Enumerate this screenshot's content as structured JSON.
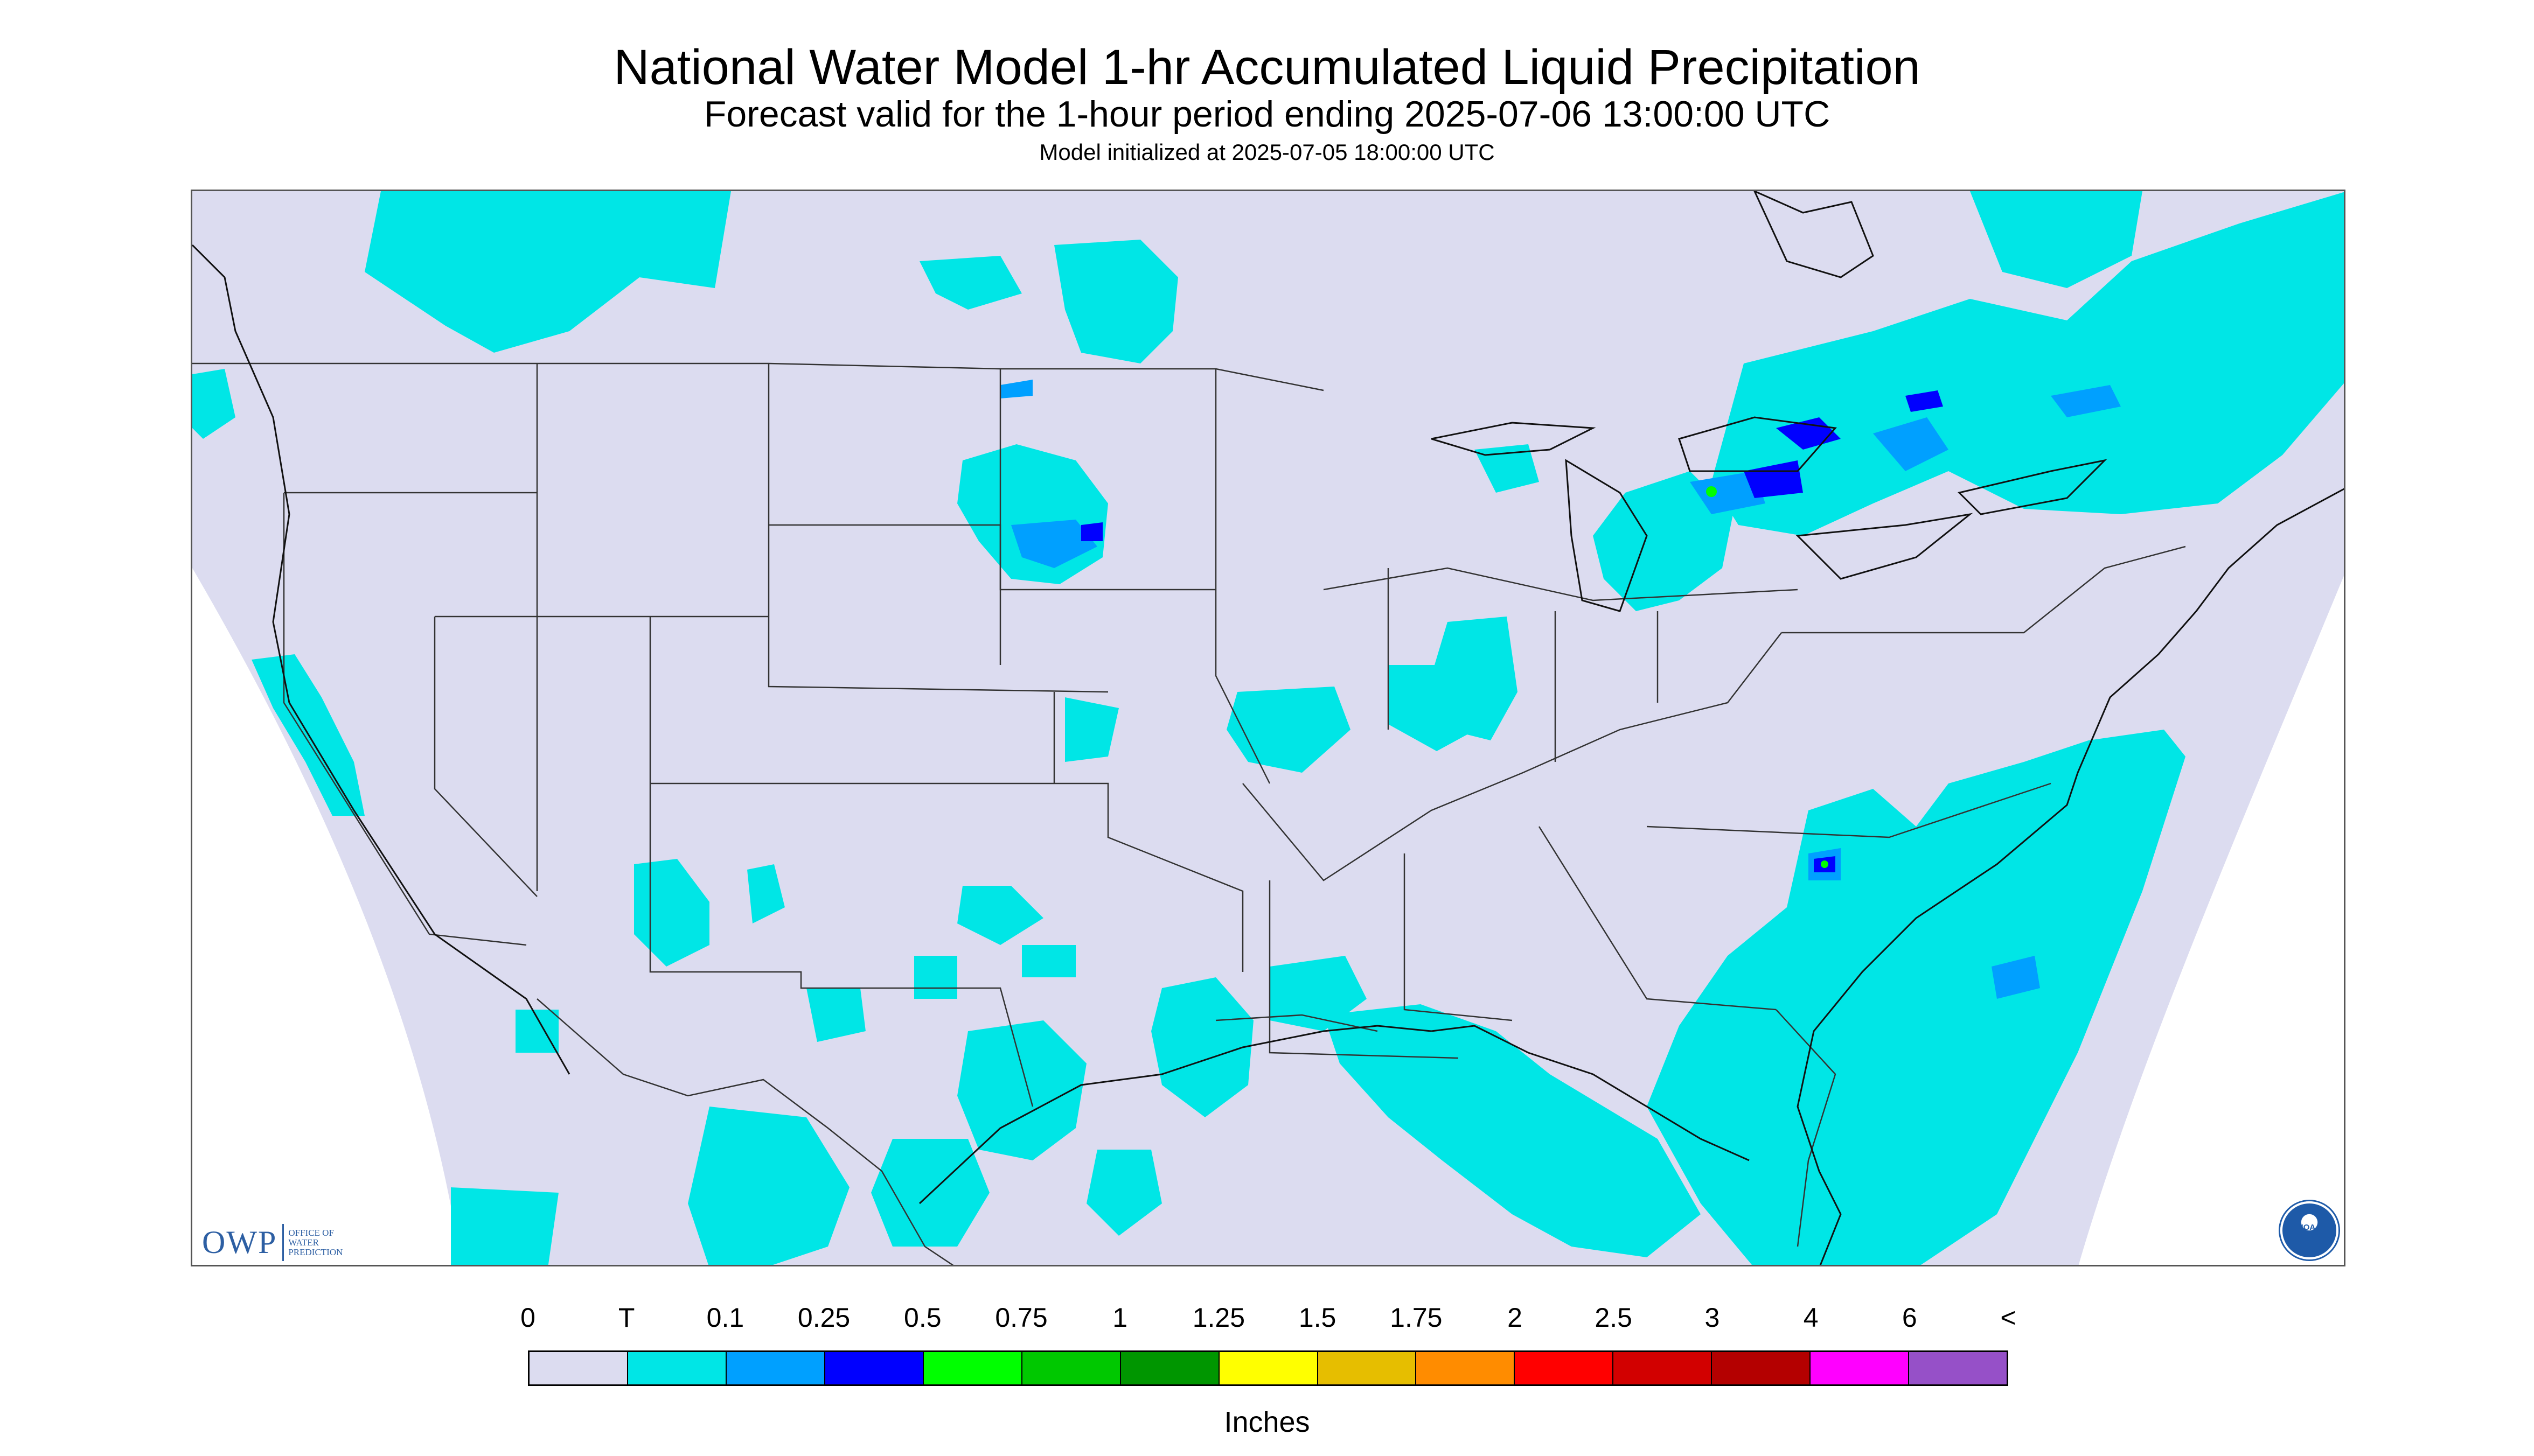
{
  "header": {
    "title": "National Water Model 1-hr Accumulated Liquid Precipitation",
    "subtitle": "Forecast valid for the 1-hour period ending 2025-07-06 13:00:00 UTC",
    "init": "Model initialized at 2025-07-05 18:00:00 UTC"
  },
  "logos": {
    "owp_mark": "OWP",
    "owp_text": "Office of Water Prediction",
    "noaa_text": "NOAA"
  },
  "legend": {
    "labels": [
      "0",
      "T",
      "0.1",
      "0.25",
      "0.5",
      "0.75",
      "1",
      "1.25",
      "1.5",
      "1.75",
      "2",
      "2.5",
      "3",
      "4",
      "6",
      "<"
    ],
    "colors": [
      "#dcdcf0",
      "#00e6e6",
      "#00a0ff",
      "#0000ff",
      "#00ff00",
      "#00c800",
      "#009600",
      "#ffff00",
      "#e6be00",
      "#ff8c00",
      "#ff0000",
      "#d20000",
      "#b40000",
      "#ff00ff",
      "#9650c8"
    ],
    "units": "Inches"
  },
  "map": {
    "background_color": "#dcdcf0",
    "outside_color": "#ffffff",
    "precip_colors": {
      "trace": "#00e6e6",
      "light": "#00a0ff",
      "moderate": "#0000ff",
      "heavy": "#00ff00"
    }
  }
}
